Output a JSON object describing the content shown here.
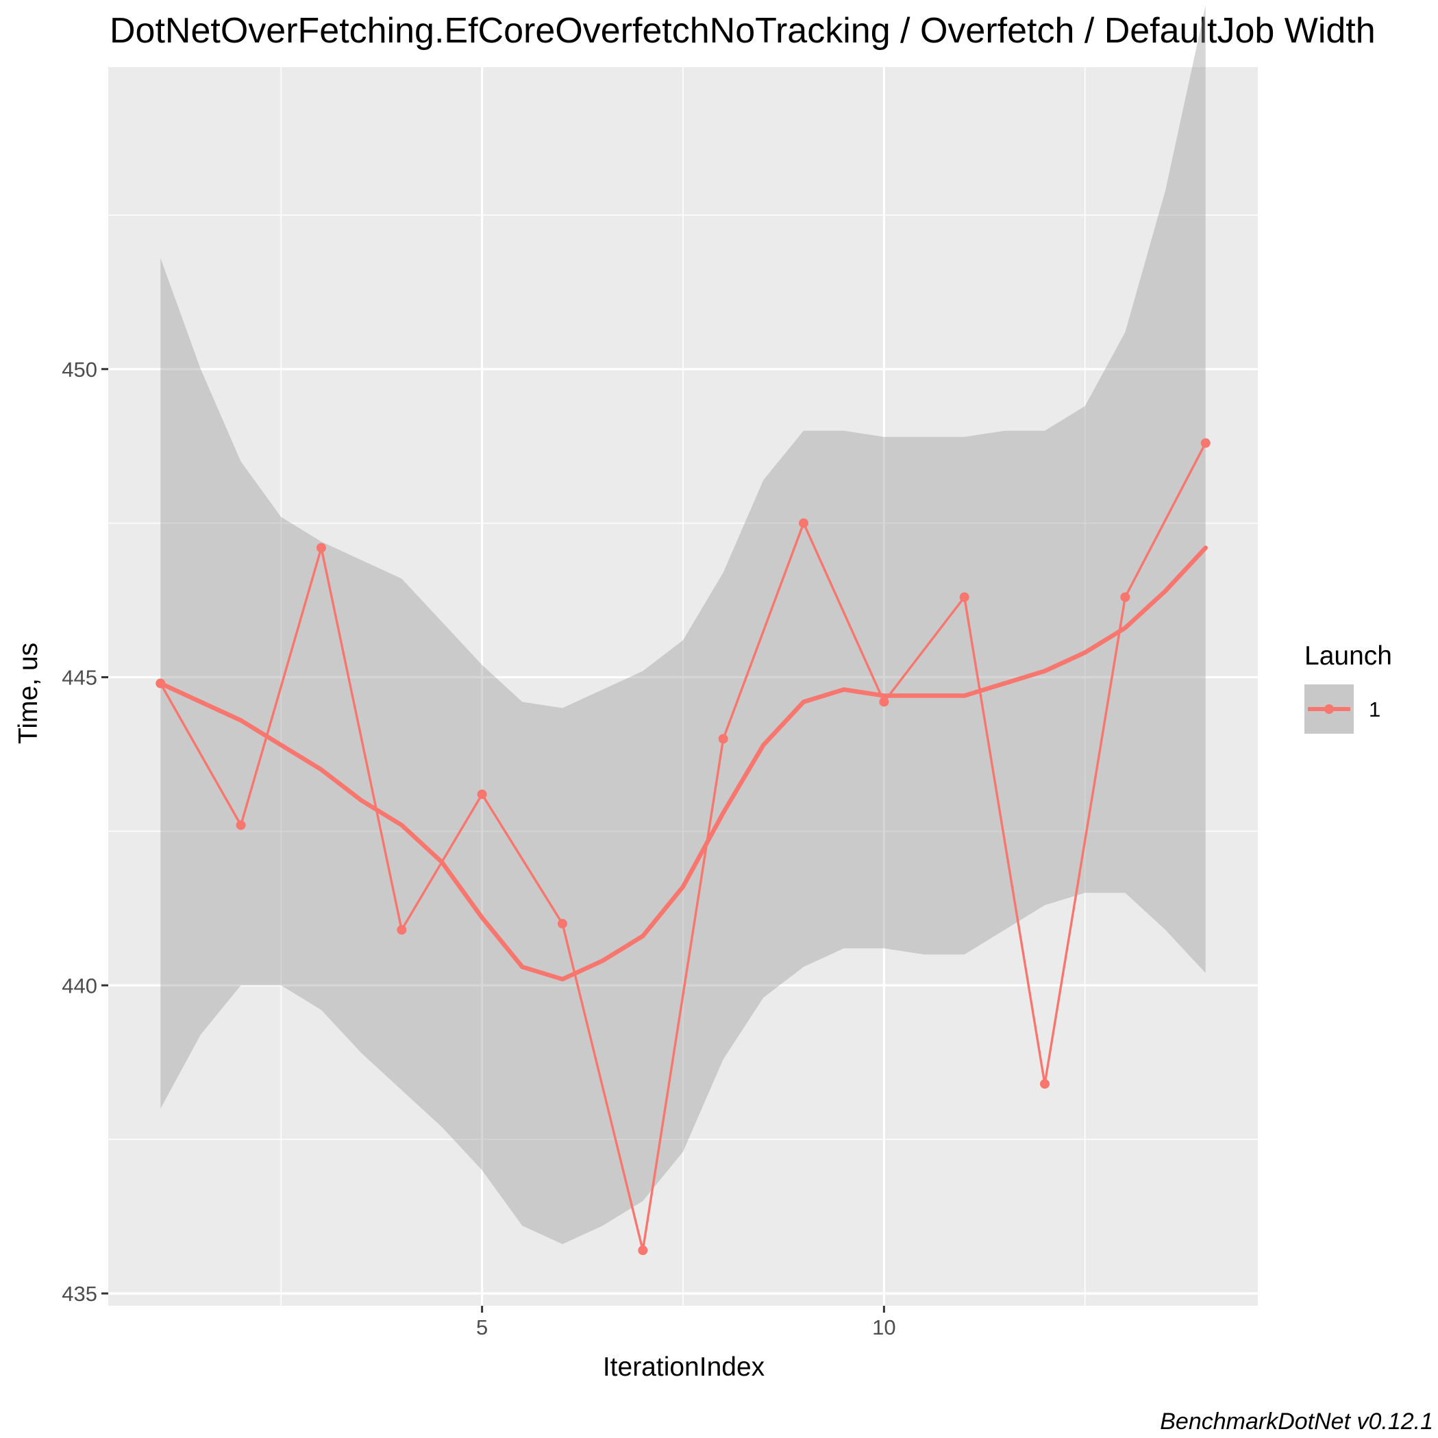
{
  "chart_data": {
    "type": "line",
    "title": "DotNetOverFetching.EfCoreOverfetchNoTracking / Overfetch / DefaultJob Width",
    "xlabel": "IterationIndex",
    "ylabel": "Time, us",
    "xlim": [
      0.35,
      14.65
    ],
    "ylim": [
      434.8,
      454.9
    ],
    "x_ticks": [
      5,
      10
    ],
    "x_tick_labels": [
      "5",
      "10"
    ],
    "y_ticks": [
      435,
      440,
      445,
      450
    ],
    "y_tick_labels": [
      "435",
      "440",
      "445",
      "450"
    ],
    "grid": true,
    "legend": {
      "title": "Launch",
      "position": "right",
      "entries": [
        "1"
      ]
    },
    "caption": "BenchmarkDotNet v0.12.1",
    "colors": {
      "series": "#f8766d",
      "ribbon": "#999999",
      "panel": "#ebebeb",
      "grid": "#ffffff"
    },
    "series": [
      {
        "name": "1",
        "x": [
          1,
          2,
          3,
          4,
          5,
          6,
          7,
          8,
          9,
          10,
          11,
          12,
          13,
          14
        ],
        "values": [
          444.9,
          442.6,
          447.1,
          440.9,
          443.1,
          441.0,
          435.7,
          444.0,
          447.5,
          444.6,
          446.3,
          438.4,
          446.3,
          448.8
        ]
      }
    ],
    "smooth": {
      "x": [
        1,
        1.5,
        2,
        2.5,
        3,
        3.5,
        4,
        4.5,
        5,
        5.5,
        6,
        6.5,
        7,
        7.5,
        8,
        8.5,
        9,
        9.5,
        10,
        10.5,
        11,
        11.5,
        12,
        12.5,
        13,
        13.5,
        14
      ],
      "y": [
        444.9,
        444.6,
        444.3,
        443.9,
        443.5,
        443.0,
        442.6,
        442.0,
        441.1,
        440.3,
        440.1,
        440.4,
        440.8,
        441.6,
        442.8,
        443.9,
        444.6,
        444.8,
        444.7,
        444.7,
        444.7,
        444.9,
        445.1,
        445.4,
        445.8,
        446.4,
        447.1
      ],
      "lower": [
        438.0,
        439.2,
        440.0,
        440.0,
        439.6,
        438.9,
        438.3,
        437.7,
        437.0,
        436.1,
        435.8,
        436.1,
        436.5,
        437.3,
        438.8,
        439.8,
        440.3,
        440.6,
        440.6,
        440.5,
        440.5,
        440.9,
        441.3,
        441.5,
        441.5,
        440.9,
        440.2
      ],
      "upper": [
        451.8,
        450.0,
        448.5,
        447.6,
        447.2,
        446.9,
        446.6,
        445.9,
        445.2,
        444.6,
        444.5,
        444.8,
        445.1,
        445.6,
        446.7,
        448.2,
        449.0,
        449.0,
        448.9,
        448.9,
        448.9,
        449.0,
        449.0,
        449.4,
        450.6,
        452.9,
        455.9
      ]
    }
  }
}
